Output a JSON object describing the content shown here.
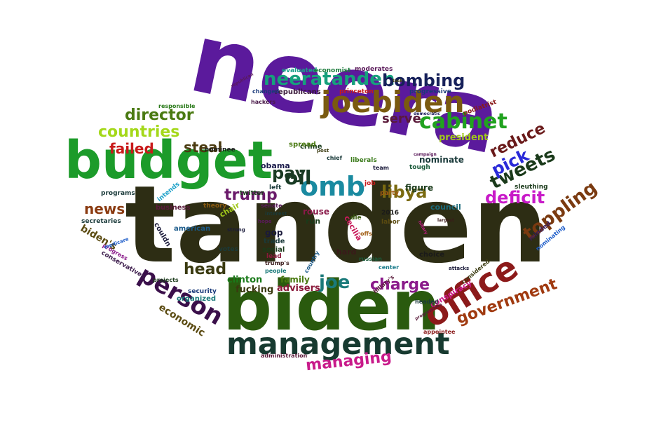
{
  "words": [
    {
      "text": "tanden",
      "color": "#2d2d14"
    },
    {
      "text": "neera",
      "color": "#5b1a9c"
    },
    {
      "text": "biden",
      "color": "#2a5a0e"
    },
    {
      "text": "budget",
      "color": "#1c9b2a"
    },
    {
      "text": "management",
      "color": "#173a30"
    },
    {
      "text": "office",
      "color": "#8c1a1a"
    },
    {
      "text": "joebiden",
      "color": "#7a5a10"
    },
    {
      "text": "neeratanden",
      "color": "#16a07c"
    },
    {
      "text": "omb",
      "color": "#1a8aa0"
    },
    {
      "text": "cabinet",
      "color": "#21a21f"
    },
    {
      "text": "person",
      "color": "#3a0f4a"
    },
    {
      "text": "bombing",
      "color": "#16205a"
    },
    {
      "text": "countries",
      "color": "#a4d81a"
    },
    {
      "text": "director",
      "color": "#4a7a12"
    },
    {
      "text": "failed",
      "color": "#c81a1a"
    },
    {
      "text": "trump",
      "color": "#6a1a6a"
    },
    {
      "text": "oil",
      "color": "#173a23"
    },
    {
      "text": "pay",
      "color": "#1a3a23"
    },
    {
      "text": "libya",
      "color": "#7a6a10"
    },
    {
      "text": "tweets",
      "color": "#1a3a1a"
    },
    {
      "text": "pick",
      "color": "#2a2ad8"
    },
    {
      "text": "reduce",
      "color": "#6a1a1a"
    },
    {
      "text": "deficit",
      "color": "#c81ac8"
    },
    {
      "text": "toppling",
      "color": "#7a3a10"
    },
    {
      "text": "government",
      "color": "#a03a10"
    },
    {
      "text": "news",
      "color": "#8a3a10"
    },
    {
      "text": "steal",
      "color": "#4a3a10"
    },
    {
      "text": "head",
      "color": "#3a3a10"
    },
    {
      "text": "joe",
      "color": "#1a7a7a"
    },
    {
      "text": "charge",
      "color": "#8a1a8a"
    },
    {
      "text": "managing",
      "color": "#c81a8a"
    },
    {
      "text": "serve",
      "color": "#5a1a3a"
    },
    {
      "text": "economic",
      "color": "#5a4a10"
    },
    {
      "text": "biden's",
      "color": "#5a4a10"
    },
    {
      "text": "president",
      "color": "#a0c81a"
    },
    {
      "text": "advisers",
      "color": "#8a1a3a"
    },
    {
      "text": "clinton",
      "color": "#1a7a1a"
    },
    {
      "text": "fucking",
      "color": "#3a3a10"
    },
    {
      "text": "family",
      "color": "#4a7a12"
    },
    {
      "text": "conspiracy",
      "color": "#c81a8a"
    },
    {
      "text": "nominate",
      "color": "#1a3a3a"
    },
    {
      "text": "figure",
      "color": "#1a3a1a"
    },
    {
      "text": "council",
      "color": "#1a6a7a"
    },
    {
      "text": "obama",
      "color": "#1a1a4a"
    },
    {
      "text": "rouse",
      "color": "#8a1a4a"
    },
    {
      "text": "cecilia",
      "color": "#c81a5a"
    },
    {
      "text": "run",
      "color": "#1a3a1a"
    },
    {
      "text": "hard",
      "color": "#3a1a1a"
    },
    {
      "text": "gop",
      "color": "#1a1a3a"
    },
    {
      "text": "trade",
      "color": "#1a3a3a"
    },
    {
      "text": "social",
      "color": "#1a3a1a"
    },
    {
      "text": "lead",
      "color": "#8a1a3a"
    },
    {
      "text": "organized",
      "color": "#1a7a7a"
    },
    {
      "text": "security",
      "color": "#1a3a7a"
    },
    {
      "text": "american",
      "color": "#1a5a8a"
    },
    {
      "text": "couldn",
      "color": "#1a1a3a"
    },
    {
      "text": "business",
      "color": "#5a1a3a"
    },
    {
      "text": "theory",
      "color": "#8a5a10"
    },
    {
      "text": "chair",
      "color": "#a0c81a"
    },
    {
      "text": "secretaries",
      "color": "#1a3a3a"
    },
    {
      "text": "conservatives",
      "color": "#3a1a4a"
    },
    {
      "text": "programs",
      "color": "#1a3a3a"
    },
    {
      "text": "intends",
      "color": "#1aa0c8"
    },
    {
      "text": "nominee",
      "color": "#1a1a1a"
    },
    {
      "text": "crime",
      "color": "#1a3a1a"
    },
    {
      "text": "spread",
      "color": "#4a7a12"
    },
    {
      "text": "liberals",
      "color": "#3a7a1a"
    },
    {
      "text": "republicans",
      "color": "#3a1a3a"
    },
    {
      "text": "evaluated",
      "color": "#1aa08a"
    },
    {
      "text": "economist",
      "color": "#1a7a3a"
    },
    {
      "text": "moderates",
      "color": "#5a1a5a"
    },
    {
      "text": "changed",
      "color": "#1a3a7a"
    },
    {
      "text": "princeton",
      "color": "#c81a1a"
    },
    {
      "text": "progressive",
      "color": "#1a3a7a"
    },
    {
      "text": "hackers",
      "color": "#4a1a4a"
    },
    {
      "text": "responsible",
      "color": "#2a7a1a"
    },
    {
      "text": "podiatrist",
      "color": "#8a1a1a"
    },
    {
      "text": "sleuthing",
      "color": "#1a3a1a"
    },
    {
      "text": "minded",
      "color": "#3a1a5a"
    },
    {
      "text": "nominating",
      "color": "#1a5ac8"
    },
    {
      "text": "appointee",
      "color": "#8a1a1a"
    },
    {
      "text": "considered",
      "color": "#3a3a10"
    },
    {
      "text": "headed",
      "color": "#1a3a3a"
    },
    {
      "text": "center",
      "color": "#1a7a8a"
    },
    {
      "text": "choice",
      "color": "#1a1a1a"
    },
    {
      "text": "party",
      "color": "#a05a10"
    },
    {
      "text": "job",
      "color": "#c81a1a"
    },
    {
      "text": "tough",
      "color": "#1a5a3a"
    },
    {
      "text": "team",
      "color": "#1a1a3a"
    },
    {
      "text": "votes",
      "color": "#1a3a3a"
    },
    {
      "text": "senate",
      "color": "#5a1a5a"
    },
    {
      "text": "left",
      "color": "#1a3a3a"
    },
    {
      "text": "twitter",
      "color": "#1a3a1a"
    },
    {
      "text": "2016",
      "color": "#1a1a1a"
    },
    {
      "text": "labor",
      "color": "#5a4a10"
    },
    {
      "text": "russian",
      "color": "#1a5a3a"
    },
    {
      "text": "die",
      "color": "#3a5a10"
    },
    {
      "text": "offs",
      "color": "#a05a10"
    },
    {
      "text": "progress",
      "color": "#8a1a8a"
    },
    {
      "text": "administration",
      "color": "#5a1a3a"
    },
    {
      "text": "projects",
      "color": "#1a3a1a"
    },
    {
      "text": "trump's",
      "color": "#3a1a1a"
    },
    {
      "text": "people",
      "color": "#1a7a7a"
    },
    {
      "text": "hillary's",
      "color": "#5a1a3a"
    },
    {
      "text": "attacks",
      "color": "#1a1a3a"
    },
    {
      "text": "medicare",
      "color": "#1a5ac8"
    },
    {
      "text": "strong",
      "color": "#1a1a3a"
    },
    {
      "text": "country",
      "color": "#1a5a8a"
    },
    {
      "text": "chief",
      "color": "#1a3a3a"
    },
    {
      "text": "post",
      "color": "#3a3a10"
    },
    {
      "text": "hope",
      "color": "#5a1a5a"
    },
    {
      "text": "interest",
      "color": "#1a3a3a"
    },
    {
      "text": "task",
      "color": "#3a3a10"
    },
    {
      "text": "democratic",
      "color": "#1a1a5a"
    },
    {
      "text": "campaign",
      "color": "#5a1a5a"
    },
    {
      "text": "largest",
      "color": "#3a1a1a"
    },
    {
      "text": "republican",
      "color": "#5a1a5a"
    },
    {
      "text": "hillary",
      "color": "#c81a8a"
    },
    {
      "text": "progressives",
      "color": "#5a1a3a"
    }
  ]
}
